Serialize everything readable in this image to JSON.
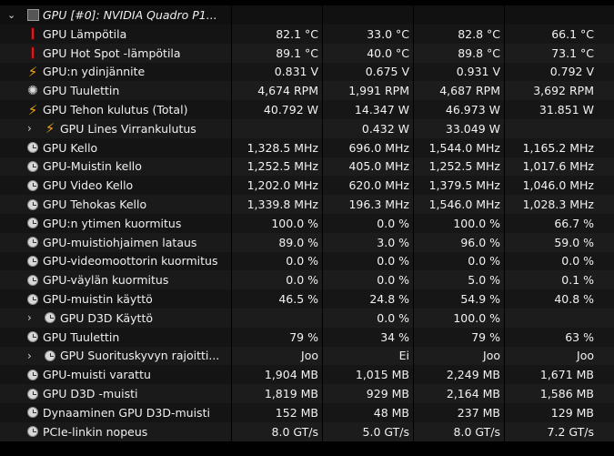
{
  "header": {
    "label": "GPU [#0]: NVIDIA Quadro P1...",
    "icon": "chip-icon"
  },
  "rows": [
    {
      "icon": "thermometer-icon",
      "label": "GPU Lämpötila",
      "v": [
        "82.1 °C",
        "33.0 °C",
        "82.8 °C",
        "66.1 °C"
      ]
    },
    {
      "icon": "thermometer-icon",
      "label": "GPU Hot Spot -lämpötila",
      "v": [
        "89.1 °C",
        "40.0 °C",
        "89.8 °C",
        "73.1 °C"
      ]
    },
    {
      "icon": "lightning-icon",
      "label": "GPU:n ydinjännite",
      "v": [
        "0.831 V",
        "0.675 V",
        "0.931 V",
        "0.792 V"
      ]
    },
    {
      "icon": "fan-icon",
      "label": "GPU Tuulettin",
      "v": [
        "4,674 RPM",
        "1,991 RPM",
        "4,687 RPM",
        "3,692 RPM"
      ]
    },
    {
      "icon": "lightning-icon",
      "label": "GPU Tehon kulutus (Total)",
      "v": [
        "40.792 W",
        "14.347 W",
        "46.973 W",
        "31.851 W"
      ]
    },
    {
      "icon": "lightning-icon",
      "label": "GPU Lines Virrankulutus",
      "child": true,
      "v": [
        "",
        "0.432 W",
        "33.049 W",
        ""
      ]
    },
    {
      "icon": "clock-icon",
      "label": "GPU Kello",
      "v": [
        "1,328.5 MHz",
        "696.0 MHz",
        "1,544.0 MHz",
        "1,165.2 MHz"
      ]
    },
    {
      "icon": "clock-icon",
      "label": "GPU-Muistin kello",
      "v": [
        "1,252.5 MHz",
        "405.0 MHz",
        "1,252.5 MHz",
        "1,017.6 MHz"
      ]
    },
    {
      "icon": "clock-icon",
      "label": "GPU Video Kello",
      "v": [
        "1,202.0 MHz",
        "620.0 MHz",
        "1,379.5 MHz",
        "1,046.0 MHz"
      ]
    },
    {
      "icon": "clock-icon",
      "label": "GPU Tehokas Kello",
      "v": [
        "1,339.8 MHz",
        "196.3 MHz",
        "1,546.0 MHz",
        "1,028.3 MHz"
      ]
    },
    {
      "icon": "clock-icon",
      "label": "GPU:n ytimen kuormitus",
      "v": [
        "100.0 %",
        "0.0 %",
        "100.0 %",
        "66.7 %"
      ]
    },
    {
      "icon": "clock-icon",
      "label": "GPU-muistiohjaimen lataus",
      "v": [
        "89.0 %",
        "3.0 %",
        "96.0 %",
        "59.0 %"
      ]
    },
    {
      "icon": "clock-icon",
      "label": "GPU-videomoottorin kuormitus",
      "v": [
        "0.0 %",
        "0.0 %",
        "0.0 %",
        "0.0 %"
      ]
    },
    {
      "icon": "clock-icon",
      "label": "GPU-väylän kuormitus",
      "v": [
        "0.0 %",
        "0.0 %",
        "5.0 %",
        "0.1 %"
      ]
    },
    {
      "icon": "clock-icon",
      "label": "GPU-muistin käyttö",
      "v": [
        "46.5 %",
        "24.8 %",
        "54.9 %",
        "40.8 %"
      ]
    },
    {
      "icon": "clock-icon",
      "label": "GPU D3D Käyttö",
      "child": true,
      "v": [
        "",
        "0.0 %",
        "100.0 %",
        ""
      ]
    },
    {
      "icon": "clock-icon",
      "label": "GPU Tuulettin",
      "v": [
        "79 %",
        "34 %",
        "79 %",
        "63 %"
      ]
    },
    {
      "icon": "clock-icon",
      "label": "GPU Suorituskyvyn rajoitti...",
      "child": true,
      "v": [
        "Joo",
        "Ei",
        "Joo",
        "Joo"
      ]
    },
    {
      "icon": "clock-icon",
      "label": "GPU-muisti varattu",
      "v": [
        "1,904 MB",
        "1,015 MB",
        "2,249 MB",
        "1,671 MB"
      ]
    },
    {
      "icon": "clock-icon",
      "label": "GPU D3D -muisti",
      "v": [
        "1,819 MB",
        "929 MB",
        "2,164 MB",
        "1,586 MB"
      ]
    },
    {
      "icon": "clock-icon",
      "label": "Dynaaminen GPU D3D-muisti",
      "v": [
        "152 MB",
        "48 MB",
        "237 MB",
        "129 MB"
      ]
    },
    {
      "icon": "clock-icon",
      "label": "PCIe-linkin nopeus",
      "v": [
        "8.0 GT/s",
        "5.0 GT/s",
        "8.0 GT/s",
        "7.2 GT/s"
      ]
    }
  ],
  "colors": {
    "background": "#000000",
    "row": "#161616",
    "thermometer": "#d02020",
    "lightning": "#f3a512"
  }
}
